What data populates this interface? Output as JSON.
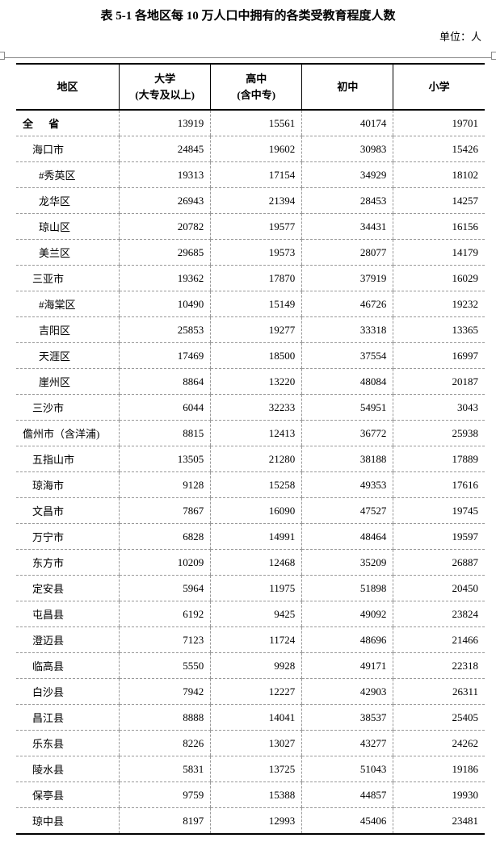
{
  "title": "表 5-1  各地区每 10 万人口中拥有的各类受教育程度人数",
  "unit": "单位：人",
  "columns": {
    "region": "地区",
    "university": "大学\n(大专及以上)",
    "highschool": "高中\n(含中专)",
    "middle": "初中",
    "primary": "小学"
  },
  "rows": [
    {
      "region": "全  省",
      "university": 13919,
      "highschool": 15561,
      "middle": 40174,
      "primary": 19701,
      "type": "total"
    },
    {
      "region": "海口市",
      "university": 24845,
      "highschool": 19602,
      "middle": 30983,
      "primary": 15426,
      "indent": 1
    },
    {
      "region": "#秀英区",
      "university": 19313,
      "highschool": 17154,
      "middle": 34929,
      "primary": 18102,
      "indent": 2
    },
    {
      "region": "龙华区",
      "university": 26943,
      "highschool": 21394,
      "middle": 28453,
      "primary": 14257,
      "indent": 2
    },
    {
      "region": "琼山区",
      "university": 20782,
      "highschool": 19577,
      "middle": 34431,
      "primary": 16156,
      "indent": 2
    },
    {
      "region": "美兰区",
      "university": 29685,
      "highschool": 19573,
      "middle": 28077,
      "primary": 14179,
      "indent": 2
    },
    {
      "region": "三亚市",
      "university": 19362,
      "highschool": 17870,
      "middle": 37919,
      "primary": 16029,
      "indent": 1
    },
    {
      "region": "#海棠区",
      "university": 10490,
      "highschool": 15149,
      "middle": 46726,
      "primary": 19232,
      "indent": 2
    },
    {
      "region": "吉阳区",
      "university": 25853,
      "highschool": 19277,
      "middle": 33318,
      "primary": 13365,
      "indent": 2
    },
    {
      "region": "天涯区",
      "university": 17469,
      "highschool": 18500,
      "middle": 37554,
      "primary": 16997,
      "indent": 2
    },
    {
      "region": "崖州区",
      "university": 8864,
      "highschool": 13220,
      "middle": 48084,
      "primary": 20187,
      "indent": 2
    },
    {
      "region": "三沙市",
      "university": 6044,
      "highschool": 32233,
      "middle": 54951,
      "primary": 3043,
      "indent": 1
    },
    {
      "region": "儋州市（含洋浦)",
      "university": 8815,
      "highschool": 12413,
      "middle": 36772,
      "primary": 25938,
      "indent": 0
    },
    {
      "region": "五指山市",
      "university": 13505,
      "highschool": 21280,
      "middle": 38188,
      "primary": 17889,
      "indent": 1
    },
    {
      "region": "琼海市",
      "university": 9128,
      "highschool": 15258,
      "middle": 49353,
      "primary": 17616,
      "indent": 1
    },
    {
      "region": "文昌市",
      "university": 7867,
      "highschool": 16090,
      "middle": 47527,
      "primary": 19745,
      "indent": 1
    },
    {
      "region": "万宁市",
      "university": 6828,
      "highschool": 14991,
      "middle": 48464,
      "primary": 19597,
      "indent": 1
    },
    {
      "region": "东方市",
      "university": 10209,
      "highschool": 12468,
      "middle": 35209,
      "primary": 26887,
      "indent": 1
    },
    {
      "region": "定安县",
      "university": 5964,
      "highschool": 11975,
      "middle": 51898,
      "primary": 20450,
      "indent": 1
    },
    {
      "region": "屯昌县",
      "university": 6192,
      "highschool": 9425,
      "middle": 49092,
      "primary": 23824,
      "indent": 1
    },
    {
      "region": "澄迈县",
      "university": 7123,
      "highschool": 11724,
      "middle": 48696,
      "primary": 21466,
      "indent": 1
    },
    {
      "region": "临高县",
      "university": 5550,
      "highschool": 9928,
      "middle": 49171,
      "primary": 22318,
      "indent": 1
    },
    {
      "region": "白沙县",
      "university": 7942,
      "highschool": 12227,
      "middle": 42903,
      "primary": 26311,
      "indent": 1
    },
    {
      "region": "昌江县",
      "university": 8888,
      "highschool": 14041,
      "middle": 38537,
      "primary": 25405,
      "indent": 1
    },
    {
      "region": "乐东县",
      "university": 8226,
      "highschool": 13027,
      "middle": 43277,
      "primary": 24262,
      "indent": 1
    },
    {
      "region": "陵水县",
      "university": 5831,
      "highschool": 13725,
      "middle": 51043,
      "primary": 19186,
      "indent": 1
    },
    {
      "region": "保亭县",
      "university": 9759,
      "highschool": 15388,
      "middle": 44857,
      "primary": 19930,
      "indent": 1
    },
    {
      "region": "琼中县",
      "university": 8197,
      "highschool": 12993,
      "middle": 45406,
      "primary": 23481,
      "indent": 1
    }
  ]
}
